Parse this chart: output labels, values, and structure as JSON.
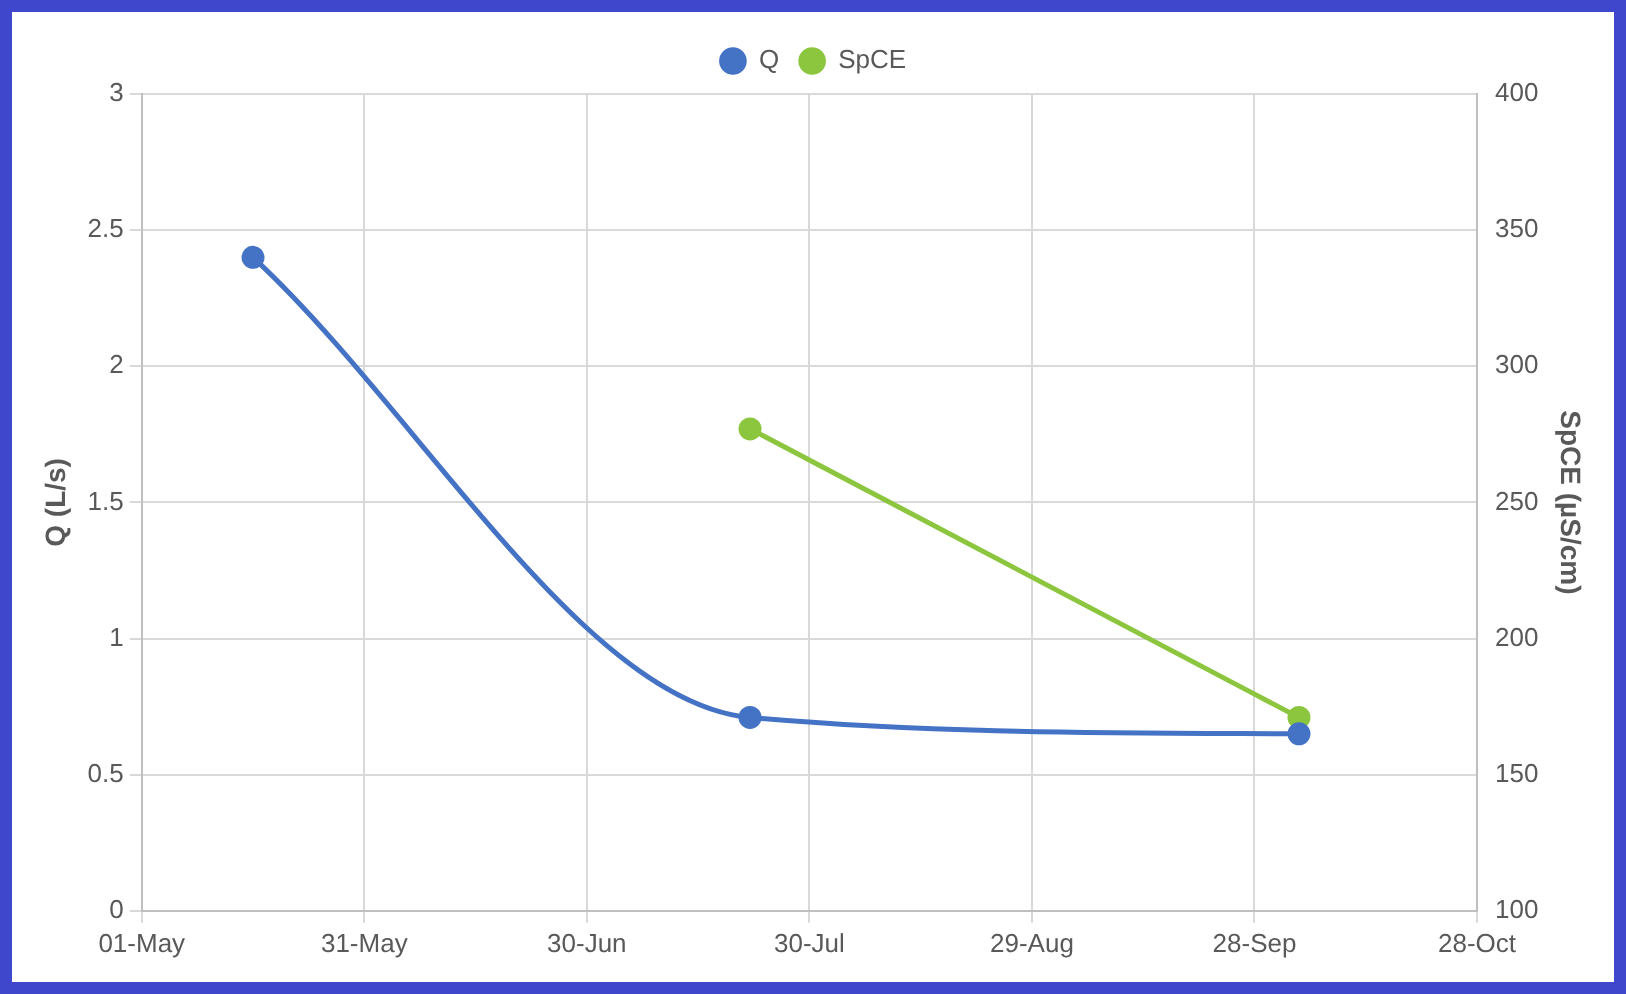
{
  "chart_data": {
    "type": "line",
    "xlabel": null,
    "ylabel": "Q (L/s)",
    "y2label": "SpCE (µS/cm)",
    "series": [
      {
        "name": "Q",
        "color": "#4472c4",
        "x": [
          "--05-16",
          "--07-22",
          "--10-04"
        ],
        "values": [
          2.4,
          0.71,
          0.65
        ]
      },
      {
        "name": "SpCE",
        "color": "#8cc63f",
        "axis": "y2",
        "x": [
          "--07-22",
          "--10-04"
        ],
        "values": [
          277,
          171
        ]
      }
    ],
    "xlim": [
      "--05-01",
      "--10-28"
    ],
    "xticks": [
      {
        "value": "--05-01",
        "label": "01-May"
      },
      {
        "value": "--05-31",
        "label": "31-May"
      },
      {
        "value": "--06-30",
        "label": "30-Jun"
      },
      {
        "value": "--07-30",
        "label": "30-Jul"
      },
      {
        "value": "--08-29",
        "label": "29-Aug"
      },
      {
        "value": "--09-28",
        "label": "28-Sep"
      },
      {
        "value": "--10-28",
        "label": "28-Oct"
      }
    ],
    "ylim": [
      0,
      3
    ],
    "yticks": [
      0,
      0.5,
      1,
      1.5,
      2,
      2.5,
      3
    ],
    "y2lim": [
      100,
      400
    ],
    "y2ticks": [
      100,
      150,
      200,
      250,
      300,
      350,
      400
    ],
    "grid": true,
    "legend": "top",
    "marker": "circle",
    "line_style": "solid"
  }
}
